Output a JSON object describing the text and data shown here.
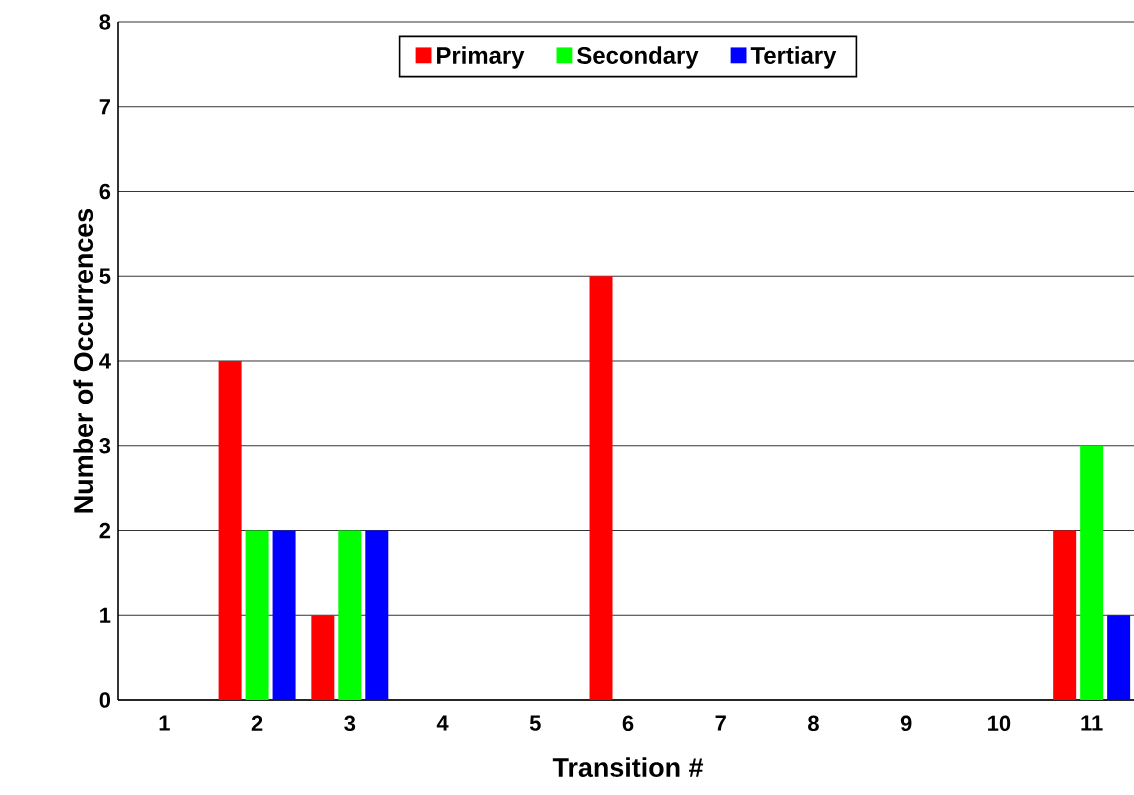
{
  "chart_data": {
    "type": "bar",
    "xlabel": "Transition #",
    "ylabel": "Number of Occurrences",
    "categories": [
      "1",
      "2",
      "3",
      "4",
      "5",
      "6",
      "7",
      "8",
      "9",
      "10",
      "11"
    ],
    "series": [
      {
        "name": "Primary",
        "color": "#ff0000",
        "values": [
          0,
          4,
          1,
          0,
          0,
          5,
          0,
          0,
          0,
          0,
          2
        ]
      },
      {
        "name": "Secondary",
        "color": "#00ff00",
        "values": [
          0,
          2,
          2,
          0,
          0,
          0,
          0,
          0,
          0,
          0,
          3
        ]
      },
      {
        "name": "Tertiary",
        "color": "#0000ff",
        "values": [
          0,
          2,
          2,
          0,
          0,
          0,
          0,
          0,
          0,
          0,
          1
        ]
      }
    ],
    "ylim": [
      0,
      8
    ],
    "yticks": [
      0,
      1,
      2,
      3,
      4,
      5,
      6,
      7,
      8
    ],
    "grid": "y",
    "legend": "top"
  }
}
